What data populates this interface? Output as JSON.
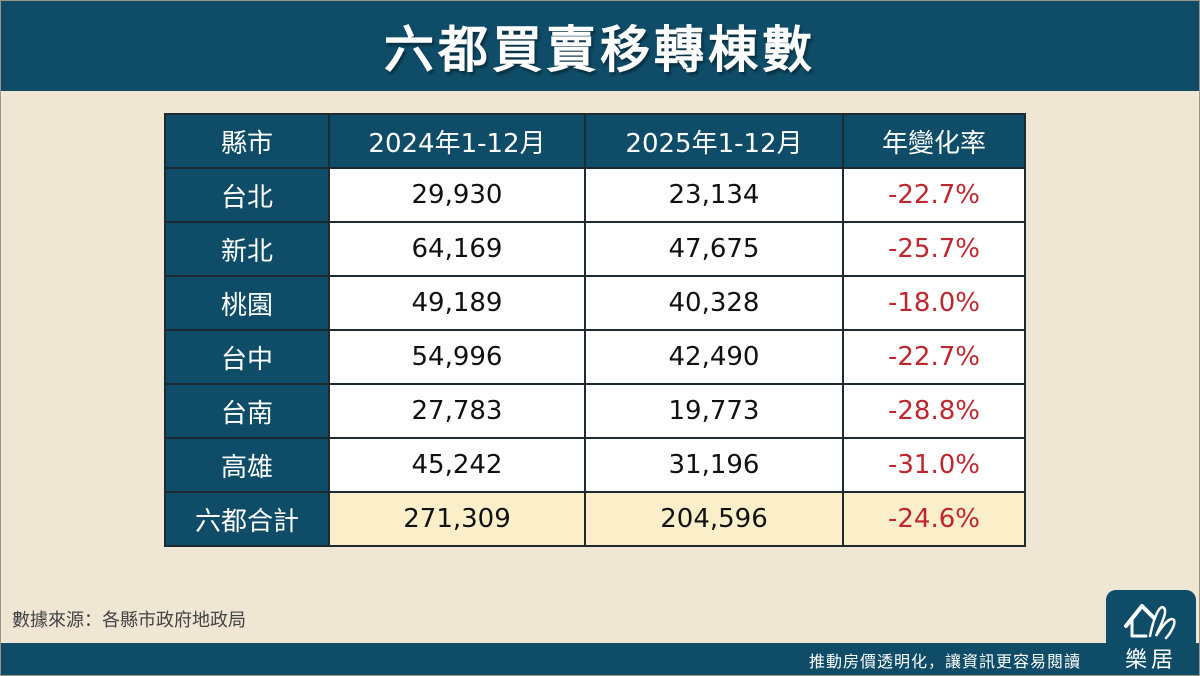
{
  "title": "六都買賣移轉棟數",
  "table": {
    "headers": [
      "縣市",
      "2024年1-12月",
      "2025年1-12月",
      "年變化率"
    ],
    "rows": [
      {
        "city": "台北",
        "y2024": "29,930",
        "y2025": "23,134",
        "change": "-22.7%"
      },
      {
        "city": "新北",
        "y2024": "64,169",
        "y2025": "47,675",
        "change": "-25.7%"
      },
      {
        "city": "桃園",
        "y2024": "49,189",
        "y2025": "40,328",
        "change": "-18.0%"
      },
      {
        "city": "台中",
        "y2024": "54,996",
        "y2025": "42,490",
        "change": "-22.7%"
      },
      {
        "city": "台南",
        "y2024": "27,783",
        "y2025": "19,773",
        "change": "-28.8%"
      },
      {
        "city": "高雄",
        "y2024": "45,242",
        "y2025": "31,196",
        "change": "-31.0%"
      }
    ],
    "total": {
      "city": "六都合計",
      "y2024": "271,309",
      "y2025": "204,596",
      "change": "-24.6%"
    }
  },
  "source": "數據來源：各縣市政府地政局",
  "footer": {
    "slogan": "推動房價透明化，讓資訊更容易閱讀",
    "brand": "樂居",
    "logo_icon": "house-signature-icon"
  },
  "colors": {
    "primary": "#0e4c68",
    "background": "#efe6d4",
    "negative": "#c0262d",
    "total_row": "#fbefca"
  }
}
